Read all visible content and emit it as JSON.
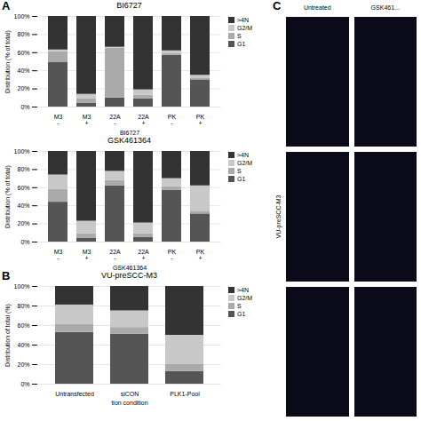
{
  "chart_data": [
    {
      "type": "bar",
      "stacked": true,
      "title": "BI6727",
      "categories": [
        "M3\n-",
        "M3\n+",
        "22A\n-",
        "22A\n+",
        "PK\n-",
        "PK\n+"
      ],
      "xlabel": "BI6727",
      "ylabel": "Distribution (% of total)",
      "series": [
        {
          "name": "G1",
          "color": "#555555",
          "values": [
            49,
            4,
            10,
            9,
            57,
            30
          ]
        },
        {
          "name": "S",
          "color": "#aaaaaa",
          "values": [
            12,
            5,
            55,
            4,
            2,
            2
          ]
        },
        {
          "name": "G2/M",
          "color": "#c8c8c8",
          "values": [
            2,
            5,
            1,
            6,
            3,
            3
          ]
        },
        {
          "name": ">4N",
          "color": "#333333",
          "values": [
            37,
            86,
            34,
            81,
            38,
            65
          ]
        }
      ],
      "ylim": [
        0,
        100
      ],
      "yticks": [
        {
          "value": 0,
          "label": "0%"
        },
        {
          "value": 20,
          "label": "20%"
        },
        {
          "value": 40,
          "label": "40%"
        },
        {
          "value": 60,
          "label": "60%"
        },
        {
          "value": 80,
          "label": "80%"
        },
        {
          "value": 100,
          "label": "100%"
        }
      ],
      "grid": true,
      "legend": "right"
    },
    {
      "type": "bar",
      "stacked": true,
      "title": "GSK461364",
      "categories": [
        "M3\n-",
        "M3\n+",
        "22A\n-",
        "22A\n+",
        "PK\n-",
        "PK\n+"
      ],
      "xlabel": "GSK461364",
      "ylabel": "Distribution (% of total)",
      "series": [
        {
          "name": "G1",
          "color": "#555555",
          "values": [
            44,
            4,
            62,
            5,
            57,
            31
          ]
        },
        {
          "name": "S",
          "color": "#aaaaaa",
          "values": [
            14,
            5,
            6,
            4,
            4,
            3
          ]
        },
        {
          "name": "G2/M",
          "color": "#c8c8c8",
          "values": [
            16,
            14,
            10,
            12,
            9,
            28
          ]
        },
        {
          "name": ">4N",
          "color": "#333333",
          "values": [
            26,
            77,
            22,
            79,
            30,
            38
          ]
        }
      ],
      "ylim": [
        0,
        100
      ],
      "yticks": [
        {
          "value": 0,
          "label": "0%"
        },
        {
          "value": 20,
          "label": "20%"
        },
        {
          "value": 40,
          "label": "40%"
        },
        {
          "value": 60,
          "label": "60%"
        },
        {
          "value": 80,
          "label": "80%"
        },
        {
          "value": 100,
          "label": "100%"
        }
      ],
      "grid": true,
      "legend": "right"
    },
    {
      "type": "bar",
      "stacked": true,
      "title": "VU-preSCC-M3",
      "categories": [
        "Untransfected",
        "siCON",
        "PLK1-Pool"
      ],
      "xlabel": "tion condition",
      "ylabel": "Distribution of total (%)",
      "series": [
        {
          "name": "G1",
          "color": "#555555",
          "values": [
            53,
            51,
            13
          ]
        },
        {
          "name": "S",
          "color": "#aaaaaa",
          "values": [
            8,
            7,
            7
          ]
        },
        {
          "name": "G2/M",
          "color": "#c8c8c8",
          "values": [
            20,
            17,
            30
          ]
        },
        {
          "name": ">4N",
          "color": "#333333",
          "values": [
            19,
            25,
            50
          ]
        }
      ],
      "ylim": [
        0,
        100
      ],
      "yticks": [
        {
          "value": 0,
          "label": "0%"
        },
        {
          "value": 20,
          "label": "20%"
        },
        {
          "value": 40,
          "label": "40%"
        },
        {
          "value": 60,
          "label": "60%"
        },
        {
          "value": 80,
          "label": "80%"
        },
        {
          "value": 100,
          "label": "100%"
        }
      ],
      "grid": true,
      "legend": "right"
    }
  ],
  "annotations": [
    "A",
    "B",
    "C",
    "Untreated",
    "GSK461...",
    "VU-preSCC-M3"
  ]
}
